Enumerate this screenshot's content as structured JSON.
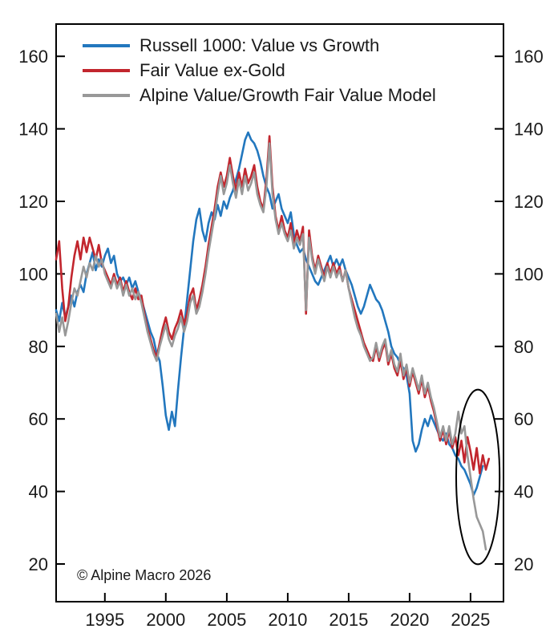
{
  "footer": {
    "copyright": "© Alpine Macro 2026"
  },
  "colors": {
    "background": "#ffffff",
    "axis": "#000000",
    "text": "#1a1a1a",
    "annotation": "#000000"
  },
  "chart_data": {
    "type": "line",
    "title": "",
    "xlabel": "",
    "ylabel": "",
    "grid": false,
    "legend_position": "top-left-inside",
    "x_axis": {
      "range": [
        1991.0,
        2027.7
      ],
      "ticks": [
        1995,
        2000,
        2005,
        2010,
        2015,
        2020,
        2025
      ]
    },
    "y_axis": {
      "range": [
        9.6,
        168.9
      ],
      "ticks": [
        20,
        40,
        60,
        80,
        100,
        120,
        140,
        160
      ],
      "labels_both_sides": true
    },
    "series": [
      {
        "name": "Russell 1000: Value vs Growth",
        "color": "#2277BE",
        "start_year": 1991.0,
        "step_years": 0.25,
        "values": [
          90,
          87,
          92,
          88,
          91,
          94,
          91,
          95,
          97,
          95,
          100,
          103,
          106,
          101,
          104,
          102,
          105,
          107,
          103,
          105,
          100,
          98,
          99,
          97,
          99,
          96,
          98,
          95,
          93,
          90,
          87,
          84,
          82,
          78,
          76,
          69,
          61,
          57,
          62,
          58,
          68,
          77,
          85,
          93,
          101,
          109,
          115,
          118,
          112,
          109,
          114,
          117,
          115,
          119,
          116,
          120,
          118,
          121,
          123,
          126,
          129,
          133,
          137,
          139,
          137,
          136,
          134,
          131,
          127,
          124,
          122,
          118,
          120,
          122,
          118,
          116,
          114,
          117,
          111,
          108,
          106,
          107,
          104,
          102,
          100,
          98,
          97,
          99,
          101,
          103,
          105,
          102,
          104,
          102,
          104,
          101,
          99,
          97,
          94,
          91,
          89,
          91,
          94,
          97,
          95,
          93,
          92,
          90,
          87,
          84,
          80,
          78,
          77,
          75,
          74,
          72,
          67,
          54,
          51,
          53,
          57,
          60,
          58,
          61,
          59,
          57,
          55,
          54,
          56,
          53,
          52,
          50,
          49,
          47,
          46,
          44,
          42,
          39,
          41,
          44,
          47
        ]
      },
      {
        "name": "Fair Value ex-Gold",
        "color": "#C2262E",
        "start_year": 1991.0,
        "step_years": 0.25,
        "values": [
          104,
          109,
          96,
          87,
          91,
          99,
          105,
          109,
          104,
          110,
          106,
          110,
          107,
          104,
          108,
          103,
          101,
          99,
          97,
          100,
          97,
          99,
          95,
          98,
          95,
          93,
          96,
          93,
          94,
          89,
          85,
          82,
          79,
          77,
          81,
          85,
          88,
          84,
          82,
          85,
          87,
          90,
          86,
          89,
          94,
          96,
          90,
          93,
          97,
          102,
          108,
          113,
          118,
          124,
          128,
          124,
          127,
          132,
          127,
          123,
          128,
          124,
          129,
          125,
          127,
          130,
          124,
          120,
          118,
          126,
          138,
          124,
          116,
          112,
          116,
          112,
          110,
          114,
          108,
          112,
          109,
          113,
          89,
          112,
          105,
          101,
          105,
          102,
          99,
          103,
          100,
          103,
          100,
          102,
          98,
          101,
          96,
          93,
          90,
          87,
          84,
          81,
          79,
          77,
          76,
          80,
          76,
          79,
          81,
          75,
          78,
          74,
          72,
          76,
          71,
          74,
          69,
          73,
          70,
          67,
          71,
          66,
          69,
          65,
          62,
          58,
          54,
          57,
          53,
          57,
          52,
          55,
          50,
          54,
          48,
          55,
          51,
          46,
          52,
          45,
          50,
          46,
          49
        ]
      },
      {
        "name": "Alpine Value/Growth Fair Value Model",
        "color": "#989898",
        "start_year": 1991.0,
        "step_years": 0.25,
        "values": [
          89,
          84,
          88,
          83,
          87,
          92,
          96,
          94,
          98,
          102,
          99,
          103,
          101,
          105,
          102,
          104,
          100,
          98,
          96,
          99,
          96,
          98,
          94,
          97,
          94,
          96,
          93,
          95,
          92,
          88,
          84,
          81,
          78,
          76,
          80,
          83,
          86,
          82,
          80,
          83,
          85,
          88,
          84,
          87,
          92,
          94,
          89,
          91,
          95,
          100,
          106,
          111,
          116,
          122,
          127,
          122,
          125,
          130,
          125,
          121,
          126,
          122,
          127,
          123,
          125,
          128,
          122,
          119,
          117,
          124,
          136,
          122,
          115,
          111,
          114,
          111,
          109,
          112,
          107,
          110,
          108,
          111,
          90,
          110,
          104,
          100,
          104,
          101,
          98,
          102,
          99,
          102,
          99,
          101,
          98,
          101,
          96,
          92,
          88,
          85,
          83,
          80,
          78,
          76,
          77,
          81,
          77,
          80,
          82,
          76,
          79,
          75,
          73,
          78,
          72,
          75,
          70,
          74,
          71,
          68,
          72,
          67,
          70,
          66,
          63,
          59,
          55,
          58,
          54,
          58,
          53,
          56,
          62,
          56,
          58,
          50,
          44,
          38,
          33,
          31,
          29,
          24
        ]
      }
    ],
    "annotations": [
      {
        "type": "ellipse",
        "purpose": "highlight-recent-divergence",
        "center_year": 2025.6,
        "center_value": 44,
        "radius_years": 1.78,
        "radius_values": 24.1,
        "color": "#000000"
      }
    ]
  }
}
